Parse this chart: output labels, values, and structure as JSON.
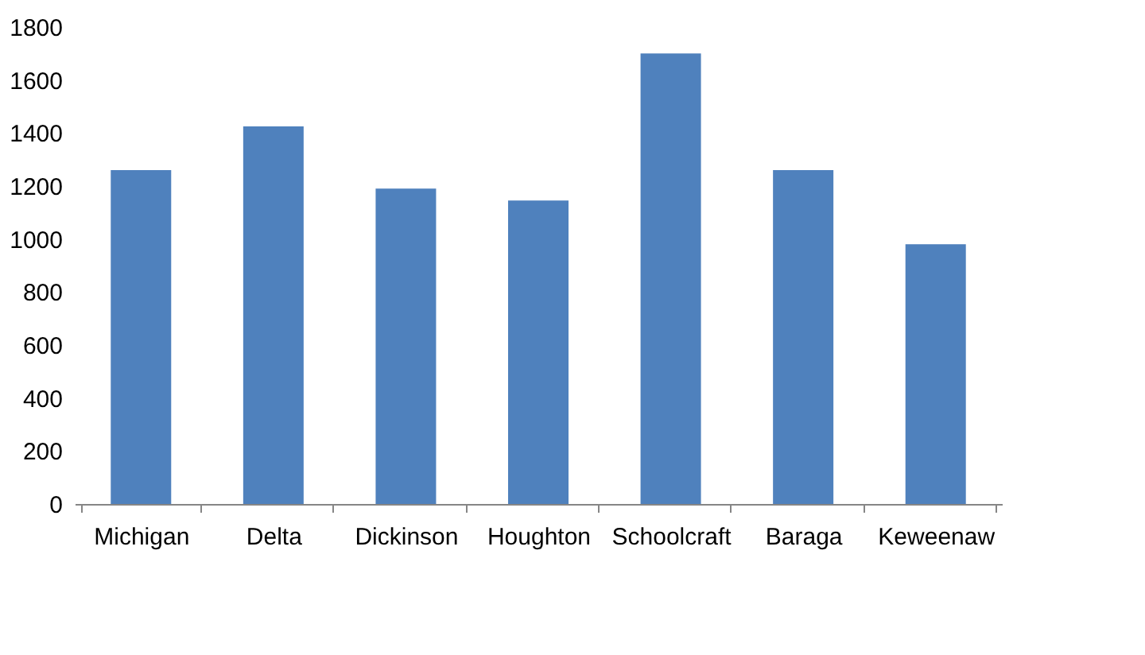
{
  "chart_data": {
    "type": "bar",
    "categories": [
      "Michigan",
      "Delta",
      "Dickinson",
      "Houghton",
      "Schoolcraft",
      "Baraga",
      "Keweenaw"
    ],
    "values": [
      1260,
      1425,
      1190,
      1145,
      1700,
      1260,
      980
    ],
    "color": "#4f81bd",
    "ylim": [
      0,
      1800
    ],
    "yticks": [
      0,
      200,
      400,
      600,
      800,
      1000,
      1200,
      1400,
      1600,
      1800
    ],
    "grid": false
  }
}
